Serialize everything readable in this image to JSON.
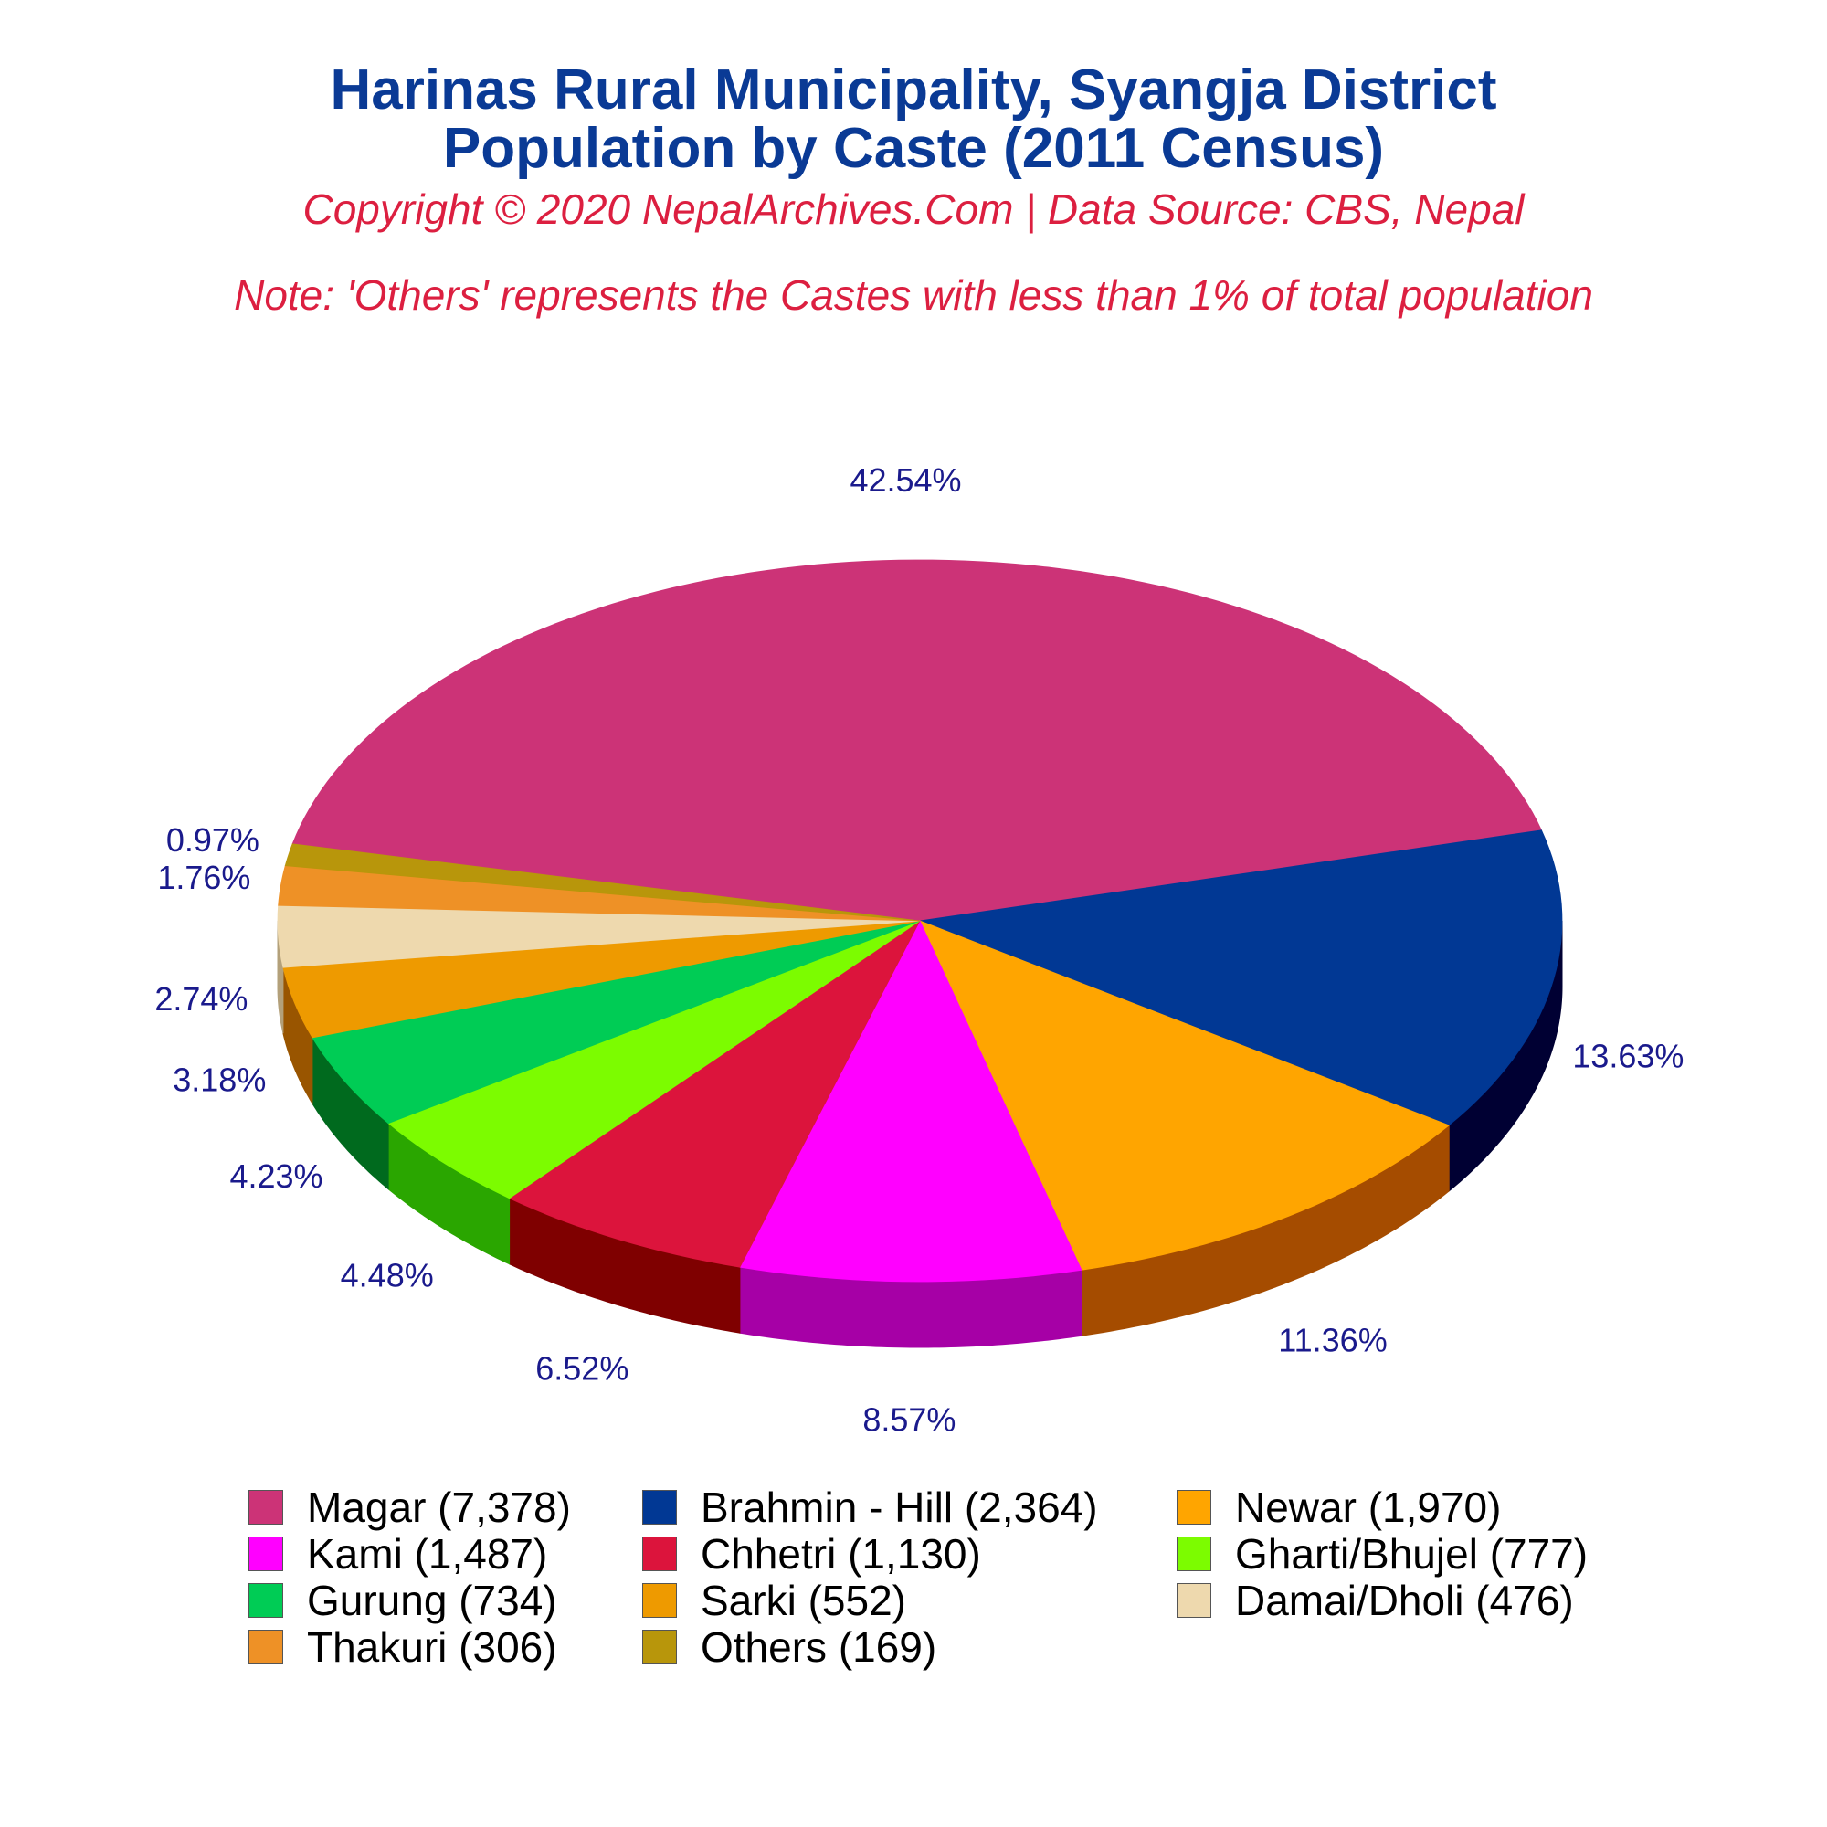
{
  "chart_data": {
    "type": "pie",
    "title_line1": "Harinas Rural Municipality, Syangja District",
    "title_line2": "Population by Caste (2011 Census)",
    "subtitle": "Copyright © 2020 NepalArchives.Com | Data Source: CBS, Nepal",
    "note": "Note: 'Others' represents the Castes with less than 1% of total population",
    "legend_position": "bottom",
    "slices": [
      {
        "label": "Magar (7,378)",
        "value": 7378,
        "pct_label": "42.54%",
        "color": "#cc3377",
        "side_color": "#7a1f47"
      },
      {
        "label": "Brahmin - Hill (2,364)",
        "value": 2364,
        "pct_label": "13.63%",
        "color": "#013894",
        "side_color": "#000033"
      },
      {
        "label": "Newar (1,970)",
        "value": 1970,
        "pct_label": "11.36%",
        "color": "#ffa500",
        "side_color": "#a54c00"
      },
      {
        "label": "Kami (1,487)",
        "value": 1487,
        "pct_label": "8.57%",
        "color": "#ff00ff",
        "side_color": "#a600a6"
      },
      {
        "label": "Chhetri (1,130)",
        "value": 1130,
        "pct_label": "6.52%",
        "color": "#dc143c",
        "side_color": "#7f0000"
      },
      {
        "label": "Gharti/Bhujel (777)",
        "value": 777,
        "pct_label": "4.48%",
        "color": "#7cfc00",
        "side_color": "#2aa600"
      },
      {
        "label": "Gurung (734)",
        "value": 734,
        "pct_label": "4.23%",
        "color": "#00cc55",
        "side_color": "#006a1e"
      },
      {
        "label": "Sarki (552)",
        "value": 552,
        "pct_label": "3.18%",
        "color": "#ee9a00",
        "side_color": "#995500"
      },
      {
        "label": "Damai/Dholi (476)",
        "value": 476,
        "pct_label": "2.74%",
        "color": "#eed9ae",
        "side_color": "#b3a07a"
      },
      {
        "label": "Thakuri (306)",
        "value": 306,
        "pct_label": "1.76%",
        "color": "#ee9126",
        "side_color": "#a05a10"
      },
      {
        "label": "Others (169)",
        "value": 169,
        "pct_label": "0.97%",
        "color": "#b8960b",
        "side_color": "#6e5a00"
      }
    ]
  }
}
